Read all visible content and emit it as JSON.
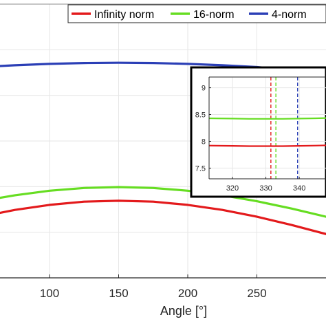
{
  "chart_data": [
    {
      "type": "line",
      "xlabel": "Angle [°]",
      "ylabel": "",
      "xlim": [
        30,
        300
      ],
      "ylim": [
        7.0,
        10.0
      ],
      "xticks": [
        100,
        150,
        200,
        250
      ],
      "grid": true,
      "legend_position": "top-right",
      "series": [
        {
          "name": "Infinity norm",
          "color": "#e31a1c",
          "x": [
            30,
            50,
            75,
            100,
            125,
            150,
            175,
            200,
            225,
            250,
            275,
            300
          ],
          "y": [
            7.6,
            7.67,
            7.745,
            7.8,
            7.835,
            7.845,
            7.835,
            7.8,
            7.745,
            7.67,
            7.58,
            7.48
          ]
        },
        {
          "name": "16-norm",
          "color": "#66dd22",
          "x": [
            30,
            50,
            75,
            100,
            125,
            150,
            175,
            200,
            225,
            250,
            275,
            300
          ],
          "y": [
            7.78,
            7.84,
            7.905,
            7.955,
            7.985,
            7.995,
            7.985,
            7.955,
            7.905,
            7.84,
            7.76,
            7.67
          ]
        },
        {
          "name": "4-norm",
          "color": "#2b3fb6",
          "x": [
            30,
            50,
            75,
            100,
            125,
            150,
            175,
            200,
            225,
            250,
            275,
            300
          ],
          "y": [
            9.295,
            9.31,
            9.33,
            9.345,
            9.355,
            9.358,
            9.355,
            9.345,
            9.33,
            9.31,
            9.28,
            9.25
          ]
        }
      ]
    },
    {
      "type": "line",
      "title": "",
      "xlim": [
        313,
        348
      ],
      "ylim": [
        7.3,
        9.2
      ],
      "xticks": [
        320,
        330,
        340
      ],
      "yticks": [
        7.5,
        8,
        8.5,
        9
      ],
      "ytick_labels": [
        "7.5",
        "8",
        "8.5",
        "9"
      ],
      "grid": true,
      "series": [
        {
          "color": "#66dd22",
          "x": [
            313,
            320,
            325,
            330,
            335,
            340,
            345,
            348
          ],
          "y": [
            8.43,
            8.425,
            8.42,
            8.42,
            8.42,
            8.425,
            8.43,
            8.435
          ]
        },
        {
          "color": "#e31a1c",
          "x": [
            313,
            320,
            325,
            330,
            335,
            340,
            345,
            348
          ],
          "y": [
            7.92,
            7.915,
            7.91,
            7.91,
            7.91,
            7.915,
            7.92,
            7.925
          ]
        }
      ],
      "vertical_lines": [
        {
          "x": 331.5,
          "color": "#e31a1c"
        },
        {
          "x": 333.0,
          "color": "#66dd22"
        },
        {
          "x": 339.5,
          "color": "#2b3fb6"
        }
      ]
    }
  ]
}
